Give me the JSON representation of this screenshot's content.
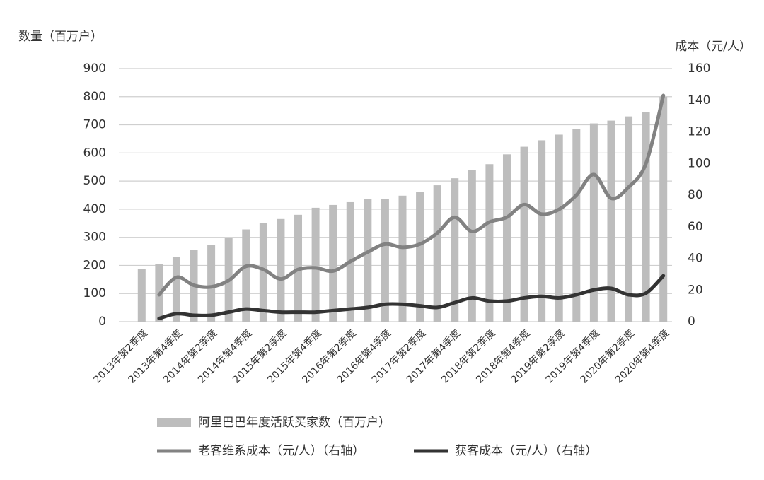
{
  "chart_data": {
    "type": "bar_line",
    "y_label": "数量（百万户）",
    "y2_label": "成本（元/人）",
    "categories": [
      "2013年第2季度",
      null,
      "2013年第4季度",
      null,
      "2014年第2季度",
      null,
      "2014年第4季度",
      null,
      "2015年第2季度",
      null,
      "2015年第4季度",
      null,
      "2016年第2季度",
      null,
      "2016年第4季度",
      null,
      "2017年第2季度",
      null,
      "2017年第4季度",
      null,
      "2018年第2季度",
      null,
      "2018年第4季度",
      null,
      "2019年第2季度",
      null,
      "2019年第4季度",
      null,
      "2020年第2季度",
      null,
      "2020年第4季度"
    ],
    "series": [
      {
        "name": "阿里巴巴年度活跃买家数（百万户）",
        "type": "bar",
        "color": "#bdbdbd",
        "values": [
          188,
          205,
          230,
          255,
          272,
          298,
          328,
          350,
          365,
          380,
          405,
          415,
          425,
          435,
          435,
          448,
          462,
          485,
          510,
          538,
          560,
          595,
          622,
          645,
          665,
          685,
          705,
          715,
          730,
          745,
          800
        ]
      },
      {
        "name": "老客维系成本（元/人）（右轴）",
        "type": "line",
        "axis": "y2",
        "color": "#828282",
        "values": [
          null,
          17,
          28,
          23,
          22,
          26,
          35,
          33,
          27,
          33,
          34,
          32,
          38,
          44,
          49,
          47,
          49,
          56,
          66,
          57,
          63,
          66,
          74,
          68,
          71,
          80,
          93,
          78,
          85,
          100,
          143
        ]
      },
      {
        "name": "获客成本（元/人）（右轴）",
        "type": "line",
        "axis": "y2",
        "color": "#333333",
        "values": [
          null,
          2,
          5,
          4,
          4,
          6,
          8,
          7,
          6,
          6,
          6,
          7,
          8,
          9,
          11,
          11,
          10,
          9,
          12,
          15,
          13,
          13,
          15,
          16,
          15,
          17,
          20,
          21,
          17,
          18,
          29
        ]
      }
    ],
    "ylim": [
      0,
      900
    ],
    "yticks": [
      0,
      100,
      200,
      300,
      400,
      500,
      600,
      700,
      800,
      900
    ],
    "y2lim": [
      0,
      160
    ],
    "y2ticks": [
      0,
      20,
      40,
      60,
      80,
      100,
      120,
      140,
      160
    ],
    "grid": true
  }
}
